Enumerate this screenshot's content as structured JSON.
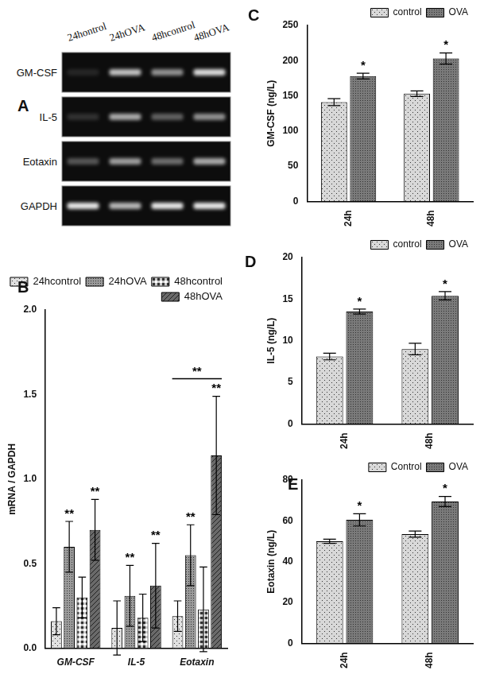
{
  "gel": {
    "panel": "A",
    "lanes": [
      "24hontrol",
      "24hOVA",
      "48hcontrol",
      "48hOVA"
    ],
    "rows": [
      "GM-CSF",
      "IL-5",
      "Eotaxin",
      "GAPDH"
    ],
    "band_intensity": [
      [
        0.1,
        0.75,
        0.55,
        0.85
      ],
      [
        0.15,
        0.65,
        0.35,
        0.55
      ],
      [
        0.3,
        0.6,
        0.4,
        0.65
      ],
      [
        0.9,
        0.7,
        0.9,
        0.9
      ]
    ]
  },
  "chart_data": [
    {
      "type": "bar",
      "panel": "B",
      "y_label": "mRNA / GAPDH",
      "categories": [
        "GM-CSF",
        "IL-5",
        "Eotaxin"
      ],
      "series": [
        {
          "name": "24hcontrol",
          "color": "#e0e0e0",
          "values": [
            0.16,
            0.12,
            0.19
          ],
          "errors": [
            0.08,
            0.16,
            0.09
          ]
        },
        {
          "name": "24hOVA",
          "color": "#9a9a9a",
          "values": [
            0.6,
            0.31,
            0.55
          ],
          "errors": [
            0.15,
            0.18,
            0.18
          ]
        },
        {
          "name": "48hcontrol",
          "color": "#c8c8c8",
          "values": [
            0.3,
            0.18,
            0.23
          ],
          "errors": [
            0.12,
            0.14,
            0.25
          ]
        },
        {
          "name": "48hOVA",
          "color": "#6a6a6a",
          "values": [
            0.7,
            0.37,
            1.14
          ],
          "errors": [
            0.18,
            0.25,
            0.35
          ]
        }
      ],
      "ylim": [
        0,
        2
      ],
      "yticks": [
        {
          "value": 0,
          "label": "0.0"
        },
        {
          "value": 0.5,
          "label": "0.5"
        },
        {
          "value": 1,
          "label": "1.0"
        },
        {
          "value": 1.5,
          "label": "1.5"
        },
        {
          "value": 2,
          "label": "2.0"
        }
      ],
      "annotations": [
        {
          "text": "**",
          "category": "GM-CSF",
          "series": "24hOVA"
        },
        {
          "text": "**",
          "category": "GM-CSF",
          "series": "48hOVA"
        },
        {
          "text": "**",
          "category": "IL-5",
          "series": "24hOVA"
        },
        {
          "text": "**",
          "category": "IL-5",
          "series": "48hOVA"
        },
        {
          "text": "**",
          "category": "Eotaxin",
          "series": "24hOVA"
        },
        {
          "text": "**",
          "category": "Eotaxin",
          "series": "48hOVA"
        },
        {
          "text": "**",
          "category": "Eotaxin",
          "bracket": true
        }
      ],
      "grid": false,
      "legend": "upper right"
    },
    {
      "type": "bar",
      "panel": "C",
      "y_label": "GM-CSF (ng/L)",
      "categories": [
        "24h",
        "48h"
      ],
      "series": [
        {
          "name": "control",
          "color": "#d8d8d8",
          "values": [
            141,
            153
          ],
          "errors": [
            5,
            4
          ]
        },
        {
          "name": "OVA",
          "color": "#7a7a7a",
          "values": [
            178,
            203
          ],
          "errors": [
            4,
            8
          ]
        }
      ],
      "ylim": [
        0,
        250
      ],
      "yticks": [
        0,
        50,
        100,
        150,
        200,
        250
      ],
      "annotations": [
        {
          "text": "*",
          "category": "24h",
          "series": "OVA"
        },
        {
          "text": "*",
          "category": "48h",
          "series": "OVA"
        }
      ],
      "grid": false,
      "legend": "upper right"
    },
    {
      "type": "bar",
      "panel": "D",
      "y_label": "IL-5 (ng/L)",
      "categories": [
        "24h",
        "48h"
      ],
      "series": [
        {
          "name": "control",
          "color": "#d8d8d8",
          "values": [
            8.1,
            9.0
          ],
          "errors": [
            0.4,
            0.7
          ]
        },
        {
          "name": "OVA",
          "color": "#7a7a7a",
          "values": [
            13.5,
            15.4
          ],
          "errors": [
            0.3,
            0.5
          ]
        }
      ],
      "ylim": [
        0,
        20
      ],
      "yticks": [
        0,
        5,
        10,
        15,
        20
      ],
      "annotations": [
        {
          "text": "*",
          "category": "24h",
          "series": "OVA"
        },
        {
          "text": "*",
          "category": "48h",
          "series": "OVA"
        }
      ],
      "grid": false,
      "legend": "upper right"
    },
    {
      "type": "bar",
      "panel": "E",
      "y_label": "Eotaxin (ng/L)",
      "categories": [
        "24h",
        "48h"
      ],
      "series": [
        {
          "name": "Control",
          "color": "#d8d8d8",
          "values": [
            50,
            53.5
          ],
          "errors": [
            1,
            1.5
          ]
        },
        {
          "name": "OVA",
          "color": "#7a7a7a",
          "values": [
            60.5,
            69.5
          ],
          "errors": [
            3,
            2.5
          ]
        }
      ],
      "ylim": [
        0,
        80
      ],
      "yticks": [
        0,
        20,
        40,
        60,
        80
      ],
      "annotations": [
        {
          "text": "*",
          "category": "24h",
          "series": "OVA"
        },
        {
          "text": "*",
          "category": "48h",
          "series": "OVA"
        }
      ],
      "grid": false,
      "legend": "upper right"
    }
  ]
}
